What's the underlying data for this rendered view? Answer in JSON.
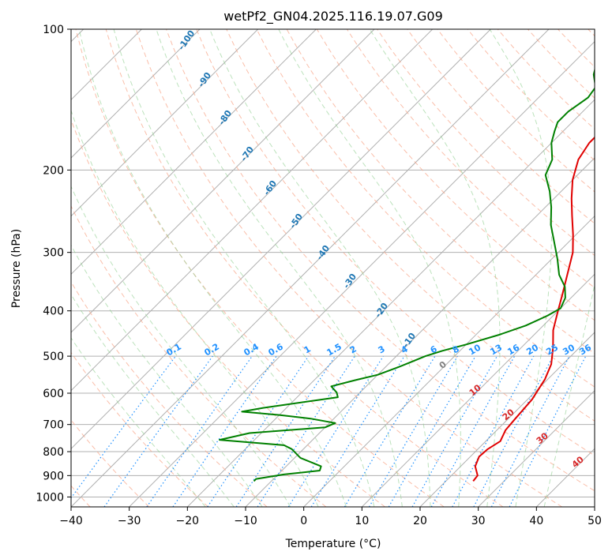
{
  "chart_data": {
    "type": "line",
    "title": "wetPf2_GN04.2025.116.19.07.G09",
    "xlabel": "Temperature (°C)",
    "ylabel": "Pressure (hPa)",
    "xlim": [
      -40,
      50
    ],
    "ylim": [
      1050,
      100
    ],
    "y_scale": "log",
    "skew": "skew-T",
    "grid": true,
    "x_ticks": [
      "−40",
      "−30",
      "−20",
      "−10",
      "0",
      "10",
      "20",
      "30",
      "40",
      "50"
    ],
    "y_ticks": [
      "100",
      "200",
      "300",
      "400",
      "500",
      "600",
      "700",
      "800",
      "900",
      "1000"
    ],
    "series": [
      {
        "role": "temperature",
        "color": "#e00000",
        "points": [
          [
            24.7,
            925
          ],
          [
            24.5,
            900
          ],
          [
            22.5,
            860
          ],
          [
            21.5,
            820
          ],
          [
            21.7,
            790
          ],
          [
            22.5,
            760
          ],
          [
            21.5,
            720
          ],
          [
            21.2,
            680
          ],
          [
            20.8,
            620
          ],
          [
            19.5,
            560
          ],
          [
            18.0,
            520
          ],
          [
            15.5,
            480
          ],
          [
            12.5,
            440
          ],
          [
            10.0,
            400
          ],
          [
            8.0,
            370
          ],
          [
            5.0,
            330
          ],
          [
            2.5,
            300
          ],
          [
            -0.5,
            275
          ],
          [
            -4.0,
            250
          ],
          [
            -7.0,
            230
          ],
          [
            -10.0,
            210
          ],
          [
            -12.5,
            190
          ],
          [
            -13.5,
            175
          ],
          [
            -13.5,
            165
          ],
          [
            -12.5,
            155
          ],
          [
            -10.5,
            145
          ],
          [
            -9.5,
            138
          ],
          [
            -8.5,
            128
          ],
          [
            -7.5,
            115
          ],
          [
            -7.0,
            108
          ],
          [
            -6.5,
            100
          ]
        ]
      },
      {
        "role": "dewpoint",
        "color": "#008000",
        "points": [
          [
            -13,
            925
          ],
          [
            -13,
            915
          ],
          [
            -9,
            895
          ],
          [
            -3.5,
            878
          ],
          [
            -4,
            860
          ],
          [
            -9,
            825
          ],
          [
            -12,
            790
          ],
          [
            -14,
            775
          ],
          [
            -26,
            755
          ],
          [
            -22,
            730
          ],
          [
            -10,
            710
          ],
          [
            -9,
            695
          ],
          [
            -14,
            680
          ],
          [
            -20,
            668
          ],
          [
            -27,
            657
          ],
          [
            -24,
            645
          ],
          [
            -13,
            612
          ],
          [
            -14,
            598
          ],
          [
            -16,
            580
          ],
          [
            -13,
            563
          ],
          [
            -10,
            548
          ],
          [
            -8,
            530
          ],
          [
            -6.5,
            515
          ],
          [
            -5,
            500
          ],
          [
            -3,
            487
          ],
          [
            0,
            472
          ],
          [
            4,
            450
          ],
          [
            7,
            430
          ],
          [
            9,
            410
          ],
          [
            10,
            395
          ],
          [
            9,
            375
          ],
          [
            7,
            355
          ],
          [
            4,
            335
          ],
          [
            1,
            310
          ],
          [
            -2.5,
            285
          ],
          [
            -6,
            262
          ],
          [
            -9,
            240
          ],
          [
            -12,
            222
          ],
          [
            -15.5,
            205
          ],
          [
            -17,
            190
          ],
          [
            -20,
            175
          ],
          [
            -21.5,
            165
          ],
          [
            -22.5,
            158
          ],
          [
            -22.5,
            150
          ],
          [
            -21.5,
            140
          ],
          [
            -22,
            133
          ],
          [
            -24.5,
            125
          ],
          [
            -26,
            118
          ],
          [
            -26,
            112
          ],
          [
            -25,
            107
          ],
          [
            -24,
            100
          ]
        ]
      }
    ],
    "dry_adiabat_labels": [
      "-100",
      "-90",
      "-80",
      "-70",
      "-60",
      "-50",
      "-40",
      "-30",
      "-20",
      "-10"
    ],
    "mixing_ratio_labels": [
      "0.1",
      "0.2",
      "0.4",
      "0.6",
      "1",
      "1.5",
      "2",
      "3",
      "4",
      "6",
      "8",
      "10",
      "13",
      "16",
      "20",
      "25",
      "30",
      "36"
    ],
    "moist_adiabat_labels": [
      "0",
      "10",
      "20",
      "30",
      "40"
    ]
  },
  "colors": {
    "temperature": "#e00000",
    "dewpoint": "#008000",
    "mixing_label": "#1e90ff",
    "dry_label": "#1f77b4",
    "moist_label": "#d62728",
    "zero_label": "#808080"
  }
}
